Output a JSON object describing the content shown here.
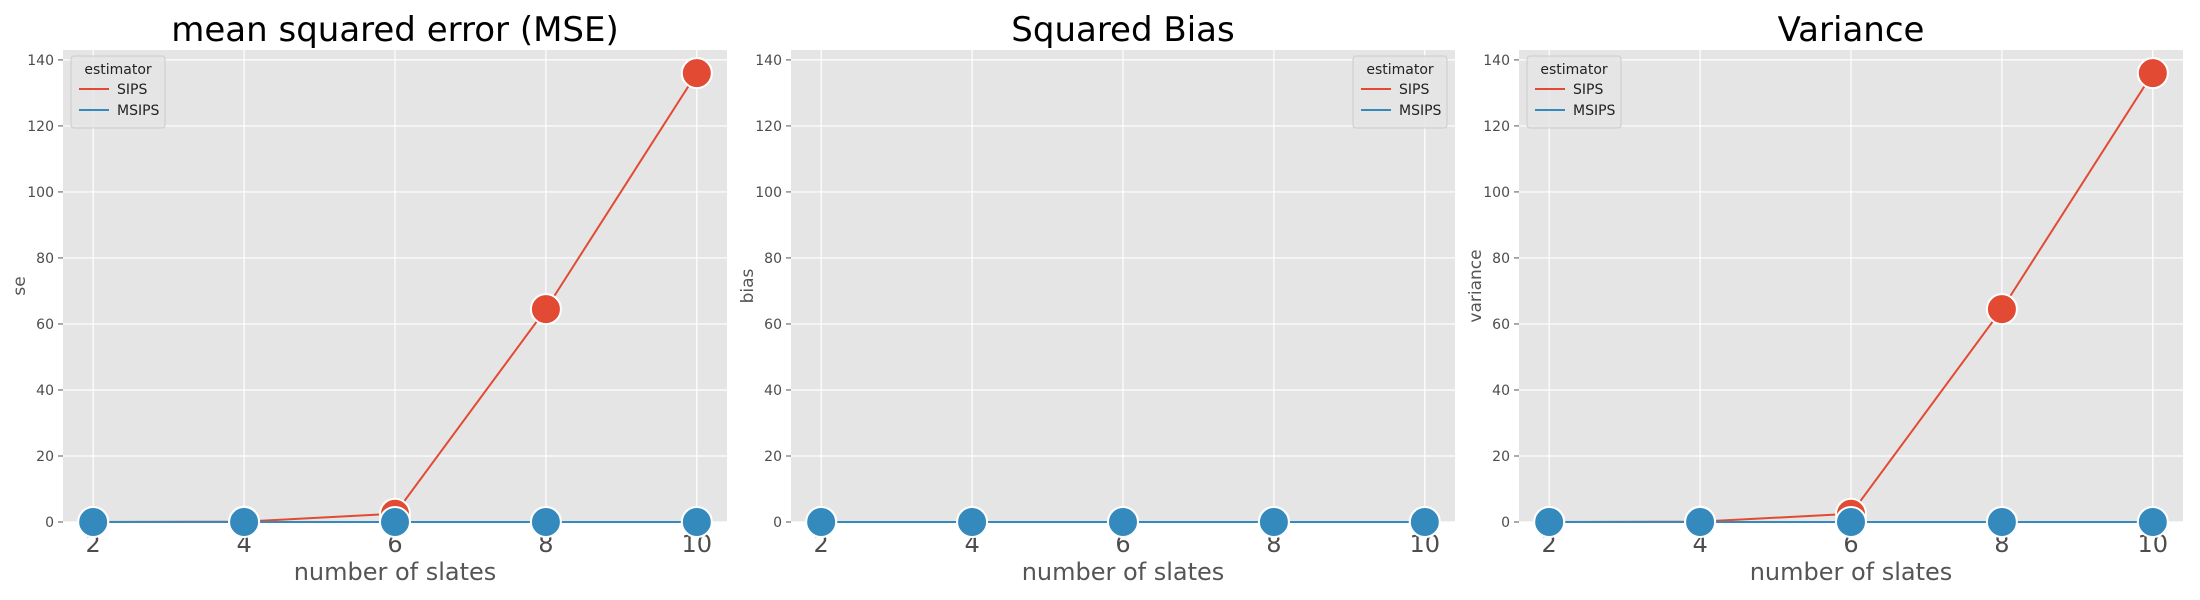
{
  "colors": {
    "SIPS": "#E24A33",
    "MSIPS": "#348ABD",
    "panel_bg": "#E5E5E5",
    "grid": "#ffffff"
  },
  "chart_data": [
    {
      "type": "line",
      "title": "mean squared error (MSE)",
      "xlabel": "number of slates",
      "ylabel": "se",
      "x": [
        2,
        4,
        6,
        8,
        10
      ],
      "xlim": [
        1.6,
        10.4
      ],
      "ylim": [
        0,
        143
      ],
      "yticks": [
        0,
        20,
        40,
        60,
        80,
        100,
        120,
        140
      ],
      "grid": true,
      "legend": {
        "title": "estimator",
        "position": "top-left"
      },
      "series": [
        {
          "name": "SIPS",
          "values": [
            0.0,
            0.1,
            2.5,
            64.5,
            136.0
          ]
        },
        {
          "name": "MSIPS",
          "values": [
            0.0,
            0.0,
            0.0,
            0.0,
            0.0
          ]
        }
      ]
    },
    {
      "type": "line",
      "title": "Squared Bias",
      "xlabel": "number of slates",
      "ylabel": "bias",
      "x": [
        2,
        4,
        6,
        8,
        10
      ],
      "xlim": [
        1.6,
        10.4
      ],
      "ylim": [
        0,
        143
      ],
      "yticks": [
        0,
        20,
        40,
        60,
        80,
        100,
        120,
        140
      ],
      "grid": true,
      "legend": {
        "title": "estimator",
        "position": "top-right"
      },
      "series": [
        {
          "name": "SIPS",
          "values": [
            0.0,
            0.0,
            0.0,
            0.0,
            0.0
          ]
        },
        {
          "name": "MSIPS",
          "values": [
            0.0,
            0.0,
            0.0,
            0.0,
            0.0
          ]
        }
      ]
    },
    {
      "type": "line",
      "title": "Variance",
      "xlabel": "number of slates",
      "ylabel": "variance",
      "x": [
        2,
        4,
        6,
        8,
        10
      ],
      "xlim": [
        1.6,
        10.4
      ],
      "ylim": [
        0,
        143
      ],
      "yticks": [
        0,
        20,
        40,
        60,
        80,
        100,
        120,
        140
      ],
      "grid": true,
      "legend": {
        "title": "estimator",
        "position": "top-left"
      },
      "series": [
        {
          "name": "SIPS",
          "values": [
            0.0,
            0.1,
            2.5,
            64.5,
            136.0
          ]
        },
        {
          "name": "MSIPS",
          "values": [
            0.0,
            0.0,
            0.0,
            0.0,
            0.0
          ]
        }
      ]
    }
  ]
}
